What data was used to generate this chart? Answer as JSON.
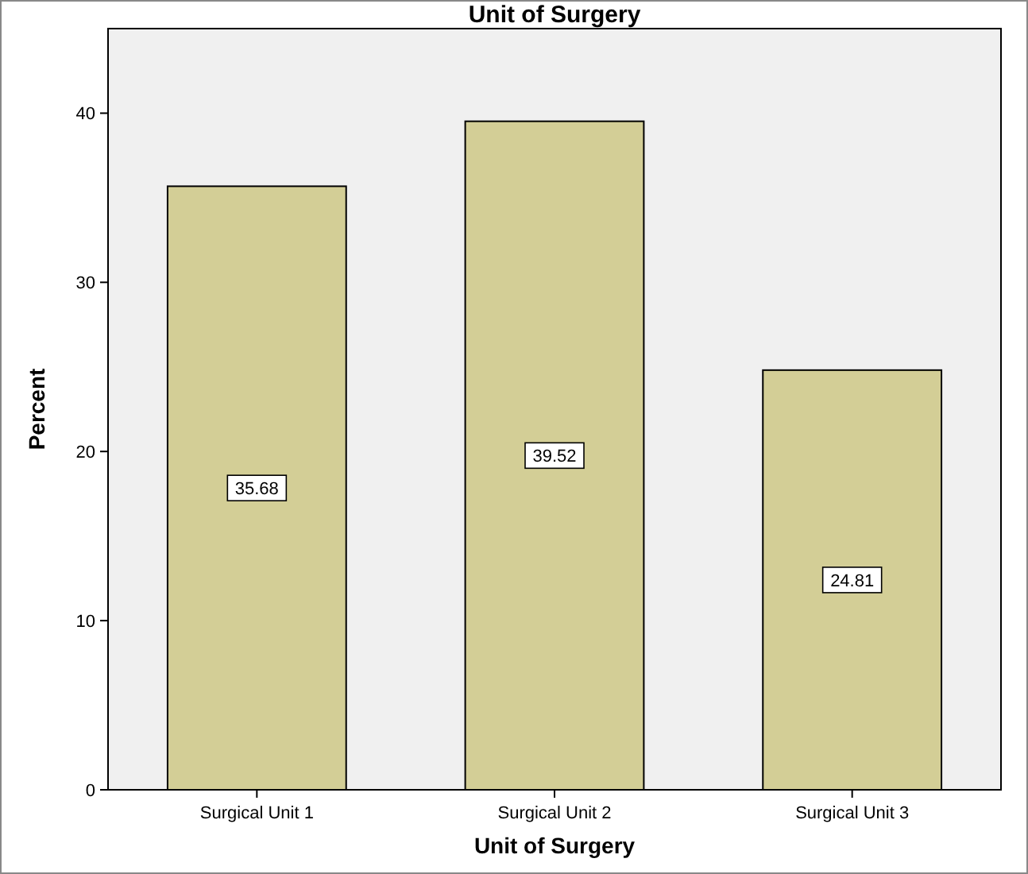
{
  "chart_data": {
    "type": "bar",
    "title": "Unit of Surgery",
    "xlabel": "Unit of Surgery",
    "ylabel": "Percent",
    "categories": [
      "Surgical Unit 1",
      "Surgical Unit 2",
      "Surgical Unit 3"
    ],
    "values": [
      35.68,
      39.52,
      24.81
    ],
    "color": "#d3ce96",
    "ylim": [
      0,
      45
    ],
    "yticks": [
      0,
      10,
      20,
      30,
      40
    ],
    "grid": false,
    "data_labels": true
  }
}
